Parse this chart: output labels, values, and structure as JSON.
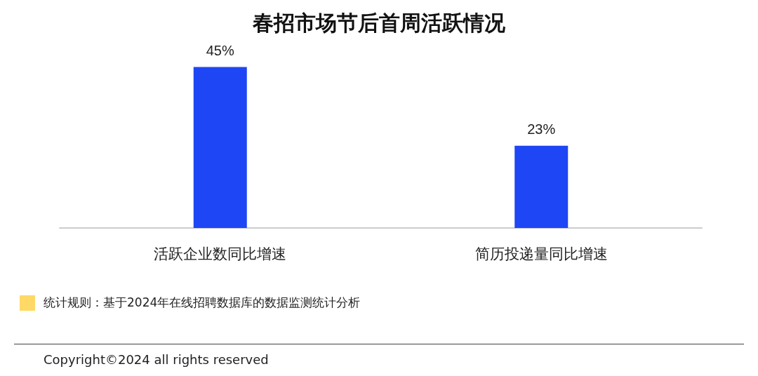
{
  "chart_data": {
    "type": "bar",
    "title": "春招市场节后首周活跃情况",
    "categories": [
      "活跃企业数同比增速",
      "简历投递量同比增速"
    ],
    "series": [
      {
        "color": "#1e46f5",
        "values": [
          45,
          23
        ],
        "value_labels": [
          "45%",
          "23%"
        ]
      }
    ],
    "annotations": [
      "统计规则：基于2024年在线招聘数据库的数据监测统计分析",
      "Copyright©2024 all rights reserved"
    ]
  }
}
